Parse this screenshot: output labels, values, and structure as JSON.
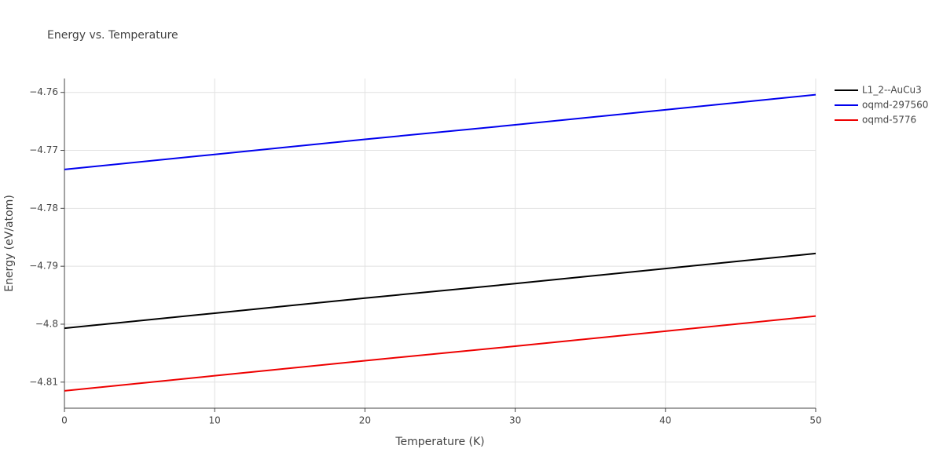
{
  "chart_data": {
    "type": "line",
    "title": "Energy vs. Temperature",
    "x_label": "Temperature (K)",
    "y_label": "Energy (eV/atom)",
    "x": [
      0,
      10,
      20,
      30,
      40,
      50
    ],
    "series": [
      {
        "name": "L1_2--AuCu3",
        "color": "#000000",
        "values": [
          -4.8007,
          -4.7981,
          -4.7955,
          -4.793,
          -4.7904,
          -4.7878
        ]
      },
      {
        "name": "oqmd-297560",
        "color": "#0000ee",
        "values": [
          -4.7733,
          -4.7707,
          -4.7681,
          -4.7656,
          -4.763,
          -4.7604
        ]
      },
      {
        "name": "oqmd-5776",
        "color": "#ee0000",
        "values": [
          -4.8115,
          -4.8089,
          -4.8063,
          -4.8038,
          -4.8012,
          -4.7986
        ]
      }
    ],
    "xlim": [
      0,
      50
    ],
    "xticks": [
      0,
      10,
      20,
      30,
      40,
      50
    ],
    "ylim": [
      -4.8145,
      -4.7576
    ],
    "yticks": [
      {
        "value": -4.81,
        "label": "−4.81"
      },
      {
        "value": -4.8,
        "label": "−4.8"
      },
      {
        "value": -4.79,
        "label": "−4.79"
      },
      {
        "value": -4.78,
        "label": "−4.78"
      },
      {
        "value": -4.77,
        "label": "−4.77"
      },
      {
        "value": -4.76,
        "label": "−4.76"
      }
    ],
    "grid": true,
    "legend": "right"
  }
}
